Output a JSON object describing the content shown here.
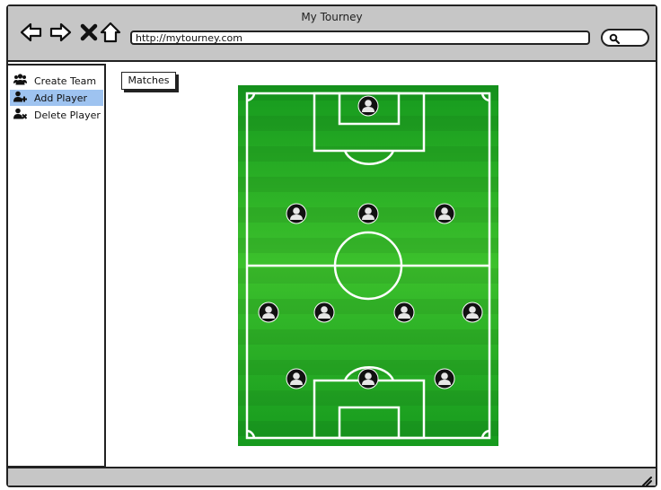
{
  "window": {
    "title": "My Tourney"
  },
  "address": {
    "url": "http://mytourney.com"
  },
  "icons": {
    "back": "back-arrow-icon",
    "forward": "forward-arrow-icon",
    "stop": "close-icon",
    "home": "home-icon",
    "search": "search-icon",
    "create_team": "users-icon",
    "add_player": "user-add-icon",
    "delete_player": "user-delete-icon",
    "player": "user-circle-icon",
    "grip": "resize-grip-icon"
  },
  "sidebar": {
    "items": [
      {
        "label": "Create Team",
        "selected": false
      },
      {
        "label": "Add Player",
        "selected": true
      },
      {
        "label": "Delete Player",
        "selected": false
      }
    ]
  },
  "main": {
    "matches_label": "Matches"
  },
  "pitch": {
    "formation": "1-3-4-3",
    "lines": [
      1,
      3,
      4,
      3
    ],
    "colors": {
      "grass_dark": "#169a1e",
      "grass_light": "#3cc12c",
      "lines": "#ffffff",
      "player": "#111111"
    }
  },
  "colors": {
    "chrome": "#c6c6c6",
    "selection": "#9ec3f0"
  }
}
